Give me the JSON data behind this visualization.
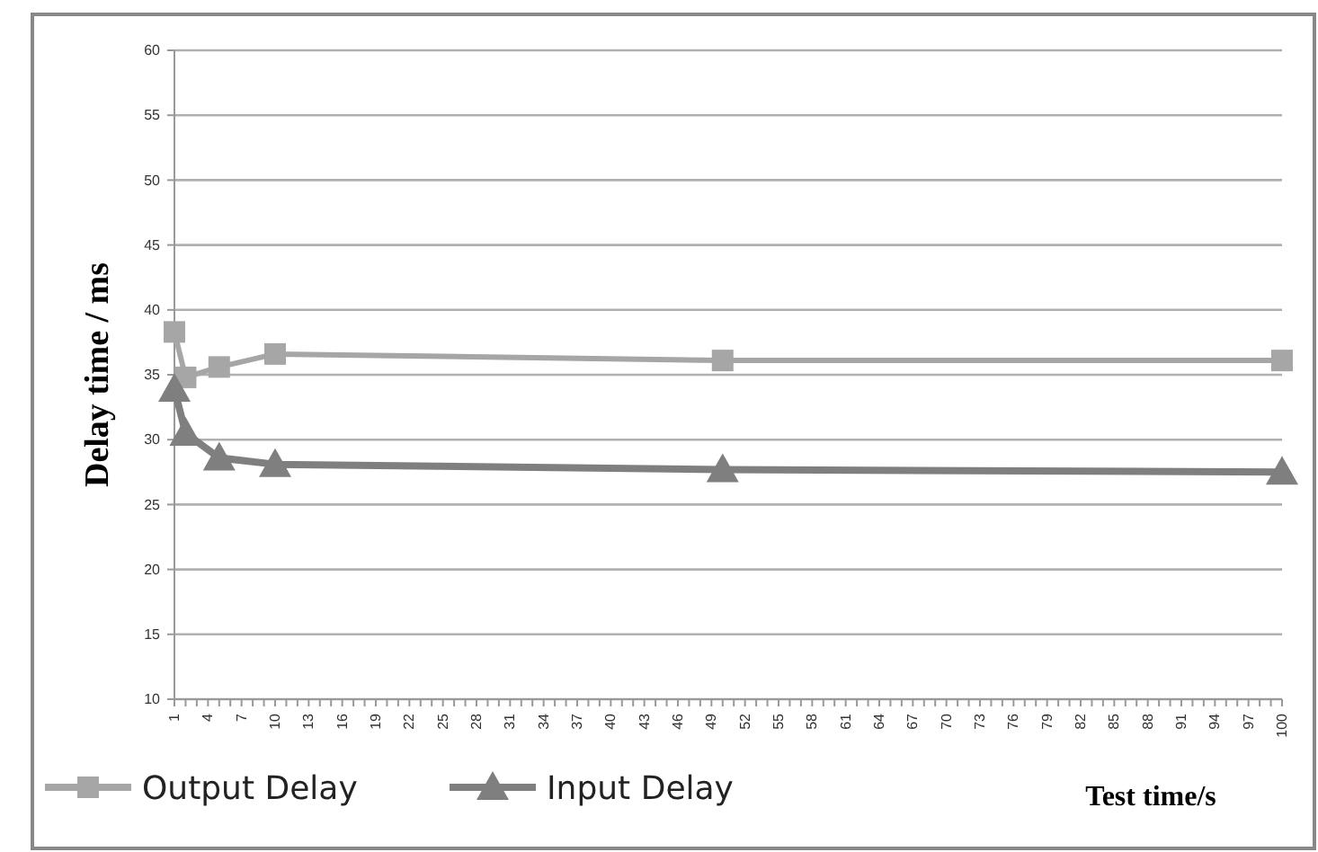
{
  "chart_data": {
    "type": "line",
    "xlabel": "Test time/s",
    "ylabel": "Delay time / ms",
    "xlim": [
      1,
      100
    ],
    "xticks": [
      1,
      4,
      7,
      10,
      13,
      16,
      19,
      22,
      25,
      28,
      31,
      34,
      37,
      40,
      43,
      46,
      49,
      52,
      55,
      58,
      61,
      64,
      67,
      70,
      73,
      76,
      79,
      82,
      85,
      88,
      91,
      94,
      97,
      100
    ],
    "ylim": [
      10,
      60
    ],
    "yticks": [
      10,
      15,
      20,
      25,
      30,
      35,
      40,
      45,
      50,
      55,
      60
    ],
    "grid": "y",
    "legend": "bottom left",
    "series": [
      {
        "name": "Output Delay",
        "color": "#a6a6a6",
        "marker": "square",
        "x": [
          1,
          2,
          5,
          10,
          50,
          100
        ],
        "values": [
          38.3,
          34.8,
          35.6,
          36.6,
          36.1,
          36.1
        ]
      },
      {
        "name": "Input Delay",
        "color": "#7f7f7f",
        "marker": "triangle",
        "x": [
          1,
          2,
          5,
          10,
          50,
          100
        ],
        "values": [
          33.9,
          30.5,
          28.6,
          28.1,
          27.7,
          27.5
        ]
      }
    ]
  }
}
